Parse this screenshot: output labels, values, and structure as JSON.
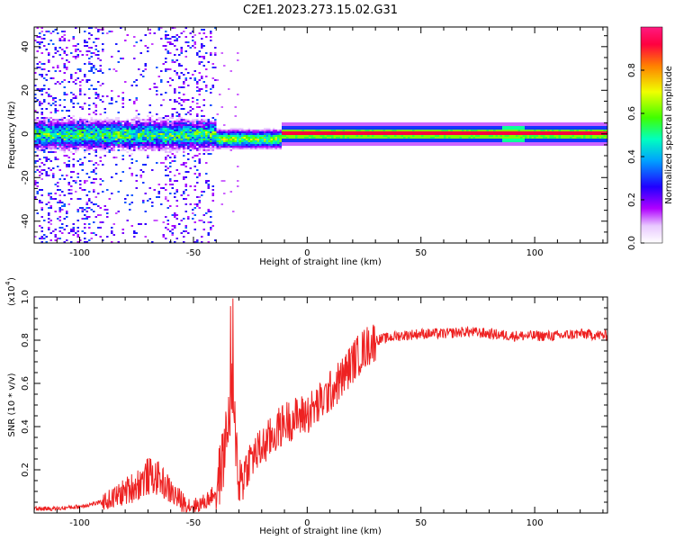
{
  "title": "C2E1.2023.273.15.02.G31",
  "chart_data": [
    {
      "type": "heatmap",
      "description_source": "spectrogram panel",
      "xlabel": "Height of straight line (km)",
      "ylabel": "Frequency (Hz)",
      "xlim": [
        -120,
        132
      ],
      "ylim": [
        -50,
        49
      ],
      "xticks": [
        -100,
        -50,
        0,
        50,
        100
      ],
      "yticks": [
        -40,
        -20,
        0,
        20,
        40
      ],
      "colorbar": {
        "label": "Normalized spectral amplitude",
        "range": [
          0,
          1
        ],
        "ticks": [
          0.0,
          0.2,
          0.4,
          0.6,
          0.8
        ],
        "tick_labels": [
          "0.0",
          "0.2",
          "0.4",
          "0.6",
          "0.8"
        ],
        "colors": [
          "#ffffff",
          "#b000ff",
          "#2000ff",
          "#00a0ff",
          "#00ffc0",
          "#40ff00",
          "#f0ff00",
          "#ff8000",
          "#ff0040",
          "#ff1a80"
        ]
      },
      "features": [
        {
          "x_range": [
            -120,
            -40
          ],
          "center_freq": 0,
          "spread_hz": 8,
          "amplitude": 0.35
        },
        {
          "x_range": [
            -40,
            -12
          ],
          "center_freq": -2,
          "spread_hz": 3,
          "amplitude": 0.55
        },
        {
          "x_range": [
            -12,
            132
          ],
          "center_freq": 0.5,
          "spread_hz": 1.5,
          "amplitude": 0.9
        }
      ]
    },
    {
      "type": "line",
      "xlabel": "Height of straight line (km)",
      "ylabel": "SNR (10 * v/v)",
      "yscale_label": "(x10",
      "yscale_exp": "4",
      "xlim": [
        -120,
        132
      ],
      "ylim": [
        0,
        1.0
      ],
      "xticks": [
        -100,
        -50,
        0,
        50,
        100
      ],
      "yticks": [
        0.2,
        0.4,
        0.6,
        0.8,
        1.0
      ],
      "ytick_labels": [
        "0.2",
        "0.4",
        "0.6",
        "0.8",
        "1.0"
      ],
      "color": "#ee2222",
      "series": [
        {
          "x": [
            -120,
            -110,
            -100,
            -90,
            -85,
            -80,
            -75,
            -70,
            -65,
            -60,
            -55,
            -50,
            -45,
            -40,
            -37,
            -35,
            -33,
            -31,
            -30,
            -28,
            -25,
            -20,
            -15,
            -10,
            -5,
            0,
            5,
            10,
            15,
            20,
            25,
            30,
            35,
            40,
            50,
            60,
            70,
            80,
            90,
            100,
            110,
            120,
            132
          ],
          "y": [
            0.02,
            0.02,
            0.03,
            0.05,
            0.07,
            0.1,
            0.13,
            0.17,
            0.16,
            0.1,
            0.05,
            0.03,
            0.05,
            0.1,
            0.25,
            0.4,
            0.55,
            0.3,
            0.15,
            0.18,
            0.25,
            0.3,
            0.36,
            0.42,
            0.44,
            0.46,
            0.5,
            0.56,
            0.62,
            0.7,
            0.76,
            0.8,
            0.81,
            0.82,
            0.83,
            0.83,
            0.84,
            0.83,
            0.82,
            0.82,
            0.82,
            0.83,
            0.82
          ]
        }
      ]
    }
  ]
}
